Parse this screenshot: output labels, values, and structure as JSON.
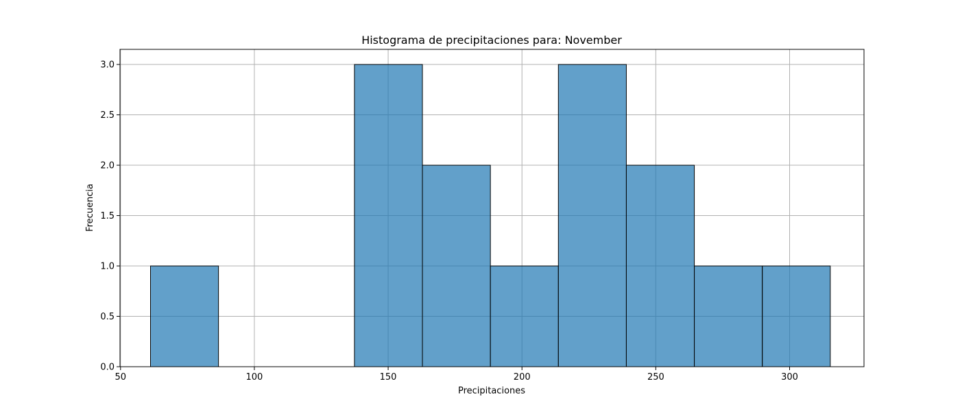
{
  "chart_data": {
    "type": "bar",
    "subtype": "histogram",
    "title": "Histograma de precipitaciones para: November",
    "xlabel": "Precipitaciones",
    "ylabel": "Frecuencia",
    "xlim": [
      49.8,
      327.8
    ],
    "ylim": [
      0,
      3.15
    ],
    "bin_edges": [
      61.2,
      86.6,
      112.0,
      137.4,
      162.8,
      188.2,
      213.6,
      239.0,
      264.4,
      289.8,
      315.2
    ],
    "counts": [
      1,
      0,
      0,
      3,
      2,
      1,
      3,
      2,
      1,
      1
    ],
    "x_ticks": [
      50,
      100,
      150,
      200,
      250,
      300
    ],
    "x_tick_labels": [
      "50",
      "100",
      "150",
      "200",
      "250",
      "300"
    ],
    "y_ticks": [
      0,
      0.5,
      1.0,
      1.5,
      2.0,
      2.5,
      3.0
    ],
    "y_tick_labels": [
      "0.0",
      "0.5",
      "1.0",
      "1.5",
      "2.0",
      "2.5",
      "3.0"
    ],
    "grid": true,
    "legend": "none",
    "colors": {
      "bar_fill": "#1f77b4",
      "bar_opacity": 0.7,
      "bar_edge": "#000000",
      "grid": "#b0b0b0",
      "axis": "#000000"
    }
  }
}
